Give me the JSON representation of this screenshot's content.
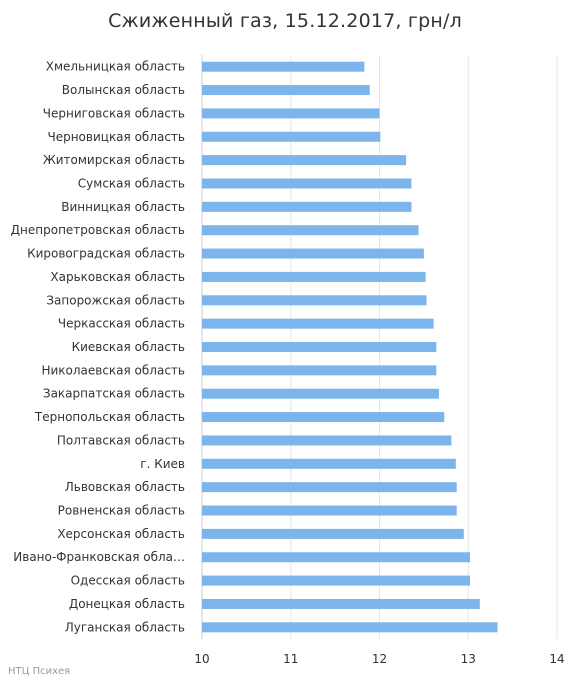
{
  "chart_data": {
    "type": "bar",
    "orientation": "horizontal",
    "title": "Сжиженный газ, 15.12.2017, грн/л",
    "xlabel": "",
    "ylabel": "",
    "xlim": [
      10,
      14
    ],
    "xticks": [
      "10",
      "11",
      "12",
      "13",
      "14"
    ],
    "grid": true,
    "legend": false,
    "bar_color": "#7cb5ec",
    "categories": [
      "Хмельницкая область",
      "Волынская область",
      "Черниговская область",
      "Черновицкая область",
      "Житомирская область",
      "Сумская область",
      "Винницкая область",
      "Днепропетровская область",
      "Кировоградская область",
      "Харьковская область",
      "Запорожская область",
      "Черкасская область",
      "Киевская область",
      "Николаевская область",
      "Закарпатская область",
      "Тернопольская область",
      "Полтавская область",
      "г. Киев",
      "Львовская область",
      "Ровненская область",
      "Херсонская область",
      "Ивано-Франковская обла…",
      "Одесская область",
      "Донецкая область",
      "Луганская область"
    ],
    "values": [
      11.83,
      11.89,
      12.0,
      12.01,
      12.3,
      12.36,
      12.36,
      12.44,
      12.5,
      12.52,
      12.53,
      12.61,
      12.64,
      12.64,
      12.67,
      12.73,
      12.81,
      12.86,
      12.87,
      12.87,
      12.95,
      13.02,
      13.02,
      13.13,
      13.33
    ]
  },
  "credit": "НТЦ Психея"
}
